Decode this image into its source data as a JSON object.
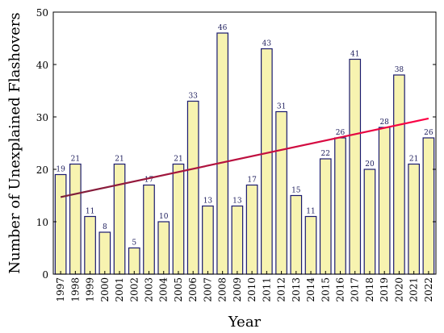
{
  "chart_data": {
    "type": "bar",
    "categories": [
      "1997",
      "1998",
      "1999",
      "2000",
      "2001",
      "2002",
      "2003",
      "2004",
      "2005",
      "2006",
      "2007",
      "2008",
      "2009",
      "2010",
      "2011",
      "2012",
      "2013",
      "2014",
      "2015",
      "2016",
      "2017",
      "2018",
      "2019",
      "2020",
      "2021",
      "2022"
    ],
    "values": [
      19,
      21,
      11,
      8,
      21,
      5,
      17,
      10,
      21,
      33,
      13,
      46,
      13,
      17,
      43,
      31,
      15,
      11,
      22,
      26,
      41,
      20,
      28,
      38,
      21,
      26
    ],
    "xlabel": "Year",
    "ylabel": "Number of Unexplained Flashovers",
    "ylim": [
      0,
      50
    ],
    "yticks": [
      0,
      10,
      20,
      30,
      40,
      50
    ],
    "trendline": {
      "start": {
        "x": "1997",
        "y": 14.7
      },
      "end": {
        "x": "2022",
        "y": 29.7
      }
    },
    "colors": {
      "bar_fill": "#f7f3b0",
      "bar_stroke": "#1a1a6e",
      "trend_start": "#7a1f3a",
      "trend_end": "#ff0044"
    },
    "grid": false,
    "legend": "none"
  }
}
